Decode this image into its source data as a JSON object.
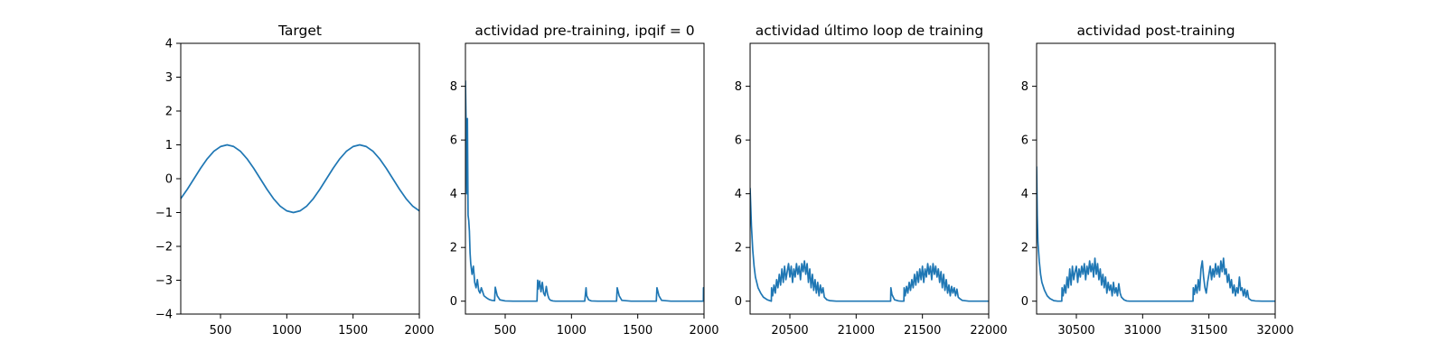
{
  "figure": {
    "background": "#ffffff",
    "series_color": "#1f77b4"
  },
  "chart_data": [
    {
      "type": "line",
      "title": "Target",
      "xlim": [
        200,
        2000
      ],
      "ylim": [
        -4,
        4
      ],
      "xticks": [
        500,
        1000,
        1500,
        2000
      ],
      "yticks": [
        -4,
        -3,
        -2,
        -1,
        0,
        1,
        2,
        3,
        4
      ],
      "grid": false,
      "series": [
        {
          "x": [
            200,
            250,
            300,
            350,
            400,
            450,
            500,
            550,
            600,
            650,
            700,
            750,
            800,
            850,
            900,
            950,
            1000,
            1050,
            1100,
            1150,
            1200,
            1250,
            1300,
            1350,
            1400,
            1450,
            1500,
            1550,
            1600,
            1650,
            1700,
            1750,
            1800,
            1850,
            1900,
            1950,
            2000
          ],
          "values": [
            -0.59,
            -0.31,
            0.0,
            0.31,
            0.59,
            0.81,
            0.95,
            1.0,
            0.95,
            0.81,
            0.59,
            0.31,
            0.0,
            -0.31,
            -0.59,
            -0.81,
            -0.95,
            -1.0,
            -0.95,
            -0.81,
            -0.59,
            -0.31,
            0.0,
            0.31,
            0.59,
            0.81,
            0.95,
            1.0,
            0.95,
            0.81,
            0.59,
            0.31,
            0.0,
            -0.31,
            -0.59,
            -0.81,
            -0.95
          ]
        }
      ]
    },
    {
      "type": "line",
      "title": "actividad pre-training, ipqif = 0",
      "xlim": [
        200,
        2000
      ],
      "ylim": [
        -0.48,
        9.6
      ],
      "xticks": [
        500,
        1000,
        1500,
        2000
      ],
      "yticks": [
        0,
        2,
        4,
        6,
        8
      ],
      "grid": false,
      "series": [
        {
          "x": [
            200,
            205,
            210,
            215,
            220,
            225,
            230,
            235,
            240,
            250,
            260,
            270,
            280,
            290,
            300,
            310,
            320,
            340,
            360,
            380,
            400,
            420,
            425,
            440,
            460,
            500,
            560,
            620,
            680,
            740,
            745,
            750,
            760,
            770,
            780,
            790,
            800,
            810,
            820,
            830,
            840,
            860,
            880,
            920,
            1000,
            1100,
            1110,
            1115,
            1130,
            1150,
            1200,
            1300,
            1340,
            1345,
            1360,
            1380,
            1450,
            1550,
            1640,
            1645,
            1660,
            1680,
            1750,
            1850,
            1950,
            1995,
            1996,
            2000
          ],
          "values": [
            8.2,
            6.5,
            4.0,
            6.8,
            3.2,
            3.0,
            2.6,
            1.8,
            1.4,
            1.0,
            1.3,
            0.7,
            0.5,
            0.8,
            0.4,
            0.3,
            0.5,
            0.2,
            0.12,
            0.06,
            0.03,
            0.02,
            0.52,
            0.2,
            0.05,
            0.01,
            0.0,
            0.0,
            0.0,
            0.0,
            0.78,
            0.45,
            0.75,
            0.35,
            0.7,
            0.3,
            0.2,
            0.55,
            0.25,
            0.1,
            0.04,
            0.01,
            0.0,
            0.0,
            0.0,
            0.0,
            0.5,
            0.2,
            0.05,
            0.01,
            0.0,
            0.0,
            0.0,
            0.5,
            0.2,
            0.03,
            0.0,
            0.0,
            0.0,
            0.5,
            0.2,
            0.03,
            0.0,
            0.0,
            0.0,
            0.0,
            0.5,
            0.5
          ]
        }
      ]
    },
    {
      "type": "line",
      "title": "actividad último loop de training",
      "xlim": [
        20200,
        22000
      ],
      "ylim": [
        -0.48,
        9.6
      ],
      "xticks": [
        20500,
        21000,
        21500,
        22000
      ],
      "yticks": [
        0,
        2,
        4,
        6,
        8
      ],
      "grid": false,
      "series": [
        {
          "x": [
            20200,
            20210,
            20220,
            20230,
            20240,
            20260,
            20280,
            20300,
            20330,
            20360,
            20362,
            20370,
            20380,
            20390,
            20400,
            20410,
            20420,
            20430,
            20440,
            20450,
            20460,
            20470,
            20480,
            20490,
            20500,
            20510,
            20520,
            20530,
            20540,
            20550,
            20560,
            20570,
            20580,
            20590,
            20600,
            20610,
            20620,
            20630,
            20640,
            20650,
            20660,
            20670,
            20680,
            20690,
            20700,
            20710,
            20720,
            20730,
            20740,
            20750,
            20760,
            20780,
            20800,
            20850,
            21000,
            21200,
            21260,
            21262,
            21270,
            21290,
            21320,
            21340,
            21360,
            21362,
            21370,
            21380,
            21390,
            21400,
            21410,
            21420,
            21430,
            21440,
            21450,
            21460,
            21470,
            21480,
            21490,
            21500,
            21510,
            21520,
            21530,
            21540,
            21550,
            21560,
            21570,
            21580,
            21590,
            21600,
            21610,
            21620,
            21630,
            21640,
            21650,
            21660,
            21670,
            21680,
            21690,
            21700,
            21710,
            21720,
            21730,
            21740,
            21750,
            21760,
            21770,
            21780,
            21800,
            21850,
            21900,
            22000
          ],
          "values": [
            4.2,
            2.8,
            1.9,
            1.3,
            0.9,
            0.5,
            0.3,
            0.15,
            0.05,
            0.0,
            0.5,
            0.2,
            0.6,
            0.3,
            0.8,
            0.5,
            1.0,
            0.6,
            1.2,
            0.7,
            1.3,
            0.8,
            1.1,
            1.4,
            0.9,
            1.3,
            0.7,
            1.2,
            0.9,
            1.4,
            1.0,
            1.3,
            0.8,
            1.4,
            1.1,
            1.5,
            1.0,
            1.4,
            0.7,
            1.2,
            0.5,
            1.0,
            0.4,
            0.8,
            0.3,
            0.7,
            0.2,
            0.6,
            0.3,
            0.5,
            0.15,
            0.05,
            0.02,
            0.0,
            0.0,
            0.0,
            0.0,
            0.5,
            0.25,
            0.05,
            0.01,
            0.0,
            0.0,
            0.5,
            0.2,
            0.55,
            0.3,
            0.7,
            0.4,
            0.8,
            0.5,
            1.0,
            0.6,
            1.1,
            0.7,
            1.2,
            0.8,
            1.3,
            0.7,
            1.2,
            0.9,
            1.4,
            1.0,
            1.3,
            0.8,
            1.4,
            1.0,
            1.3,
            0.9,
            1.2,
            0.7,
            1.1,
            0.5,
            1.0,
            0.4,
            0.8,
            0.3,
            0.6,
            0.2,
            0.55,
            0.3,
            0.5,
            0.2,
            0.45,
            0.15,
            0.1,
            0.03,
            0.0,
            0.0,
            0.0
          ]
        }
      ]
    },
    {
      "type": "line",
      "title": "actividad post-training",
      "xlim": [
        30200,
        32000
      ],
      "ylim": [
        -0.48,
        9.6
      ],
      "xticks": [
        30500,
        31000,
        31500,
        32000
      ],
      "yticks": [
        0,
        2,
        4,
        6,
        8
      ],
      "grid": false,
      "series": [
        {
          "x": [
            30200,
            30205,
            30210,
            30220,
            30230,
            30240,
            30260,
            30280,
            30300,
            30330,
            30360,
            30390,
            30392,
            30400,
            30410,
            30420,
            30430,
            30440,
            30450,
            30460,
            30470,
            30480,
            30490,
            30500,
            30510,
            30520,
            30530,
            30540,
            30550,
            30560,
            30570,
            30580,
            30590,
            30600,
            30610,
            30620,
            30630,
            30640,
            30650,
            30660,
            30670,
            30680,
            30690,
            30700,
            30710,
            30720,
            30730,
            30740,
            30750,
            30760,
            30770,
            30780,
            30790,
            30800,
            30810,
            30820,
            30830,
            30840,
            30860,
            30880,
            30900,
            31000,
            31200,
            31380,
            31382,
            31390,
            31400,
            31410,
            31420,
            31430,
            31440,
            31450,
            31460,
            31470,
            31480,
            31490,
            31500,
            31510,
            31520,
            31530,
            31540,
            31550,
            31560,
            31570,
            31580,
            31590,
            31600,
            31610,
            31620,
            31630,
            31640,
            31650,
            31660,
            31670,
            31680,
            31690,
            31700,
            31710,
            31720,
            31730,
            31740,
            31750,
            31760,
            31770,
            31780,
            31790,
            31800,
            31820,
            31850,
            31900,
            32000
          ],
          "values": [
            5.0,
            3.2,
            2.2,
            1.5,
            1.0,
            0.7,
            0.4,
            0.2,
            0.1,
            0.02,
            0.0,
            0.0,
            0.5,
            0.2,
            0.6,
            0.3,
            0.9,
            0.5,
            1.2,
            0.6,
            1.3,
            0.8,
            1.1,
            1.3,
            0.7,
            1.2,
            0.9,
            1.3,
            1.0,
            1.4,
            0.8,
            1.3,
            1.0,
            1.5,
            1.1,
            1.4,
            0.9,
            1.6,
            1.0,
            1.4,
            0.8,
            1.2,
            0.6,
            1.0,
            0.5,
            0.9,
            0.3,
            0.7,
            0.4,
            0.6,
            0.2,
            0.7,
            0.3,
            0.5,
            0.2,
            0.65,
            0.3,
            0.15,
            0.05,
            0.01,
            0.0,
            0.0,
            0.0,
            0.0,
            0.5,
            0.25,
            0.6,
            0.3,
            0.8,
            0.4,
            1.2,
            1.5,
            0.9,
            0.5,
            0.3,
            0.7,
            1.0,
            1.3,
            0.8,
            1.2,
            0.9,
            1.4,
            1.0,
            1.3,
            0.9,
            1.5,
            1.1,
            1.6,
            1.0,
            1.2,
            0.7,
            1.0,
            0.5,
            0.8,
            0.3,
            0.6,
            0.2,
            0.5,
            0.3,
            0.9,
            0.4,
            0.5,
            0.2,
            0.45,
            0.15,
            0.4,
            0.1,
            0.03,
            0.01,
            0.0,
            0.0
          ]
        }
      ]
    }
  ]
}
